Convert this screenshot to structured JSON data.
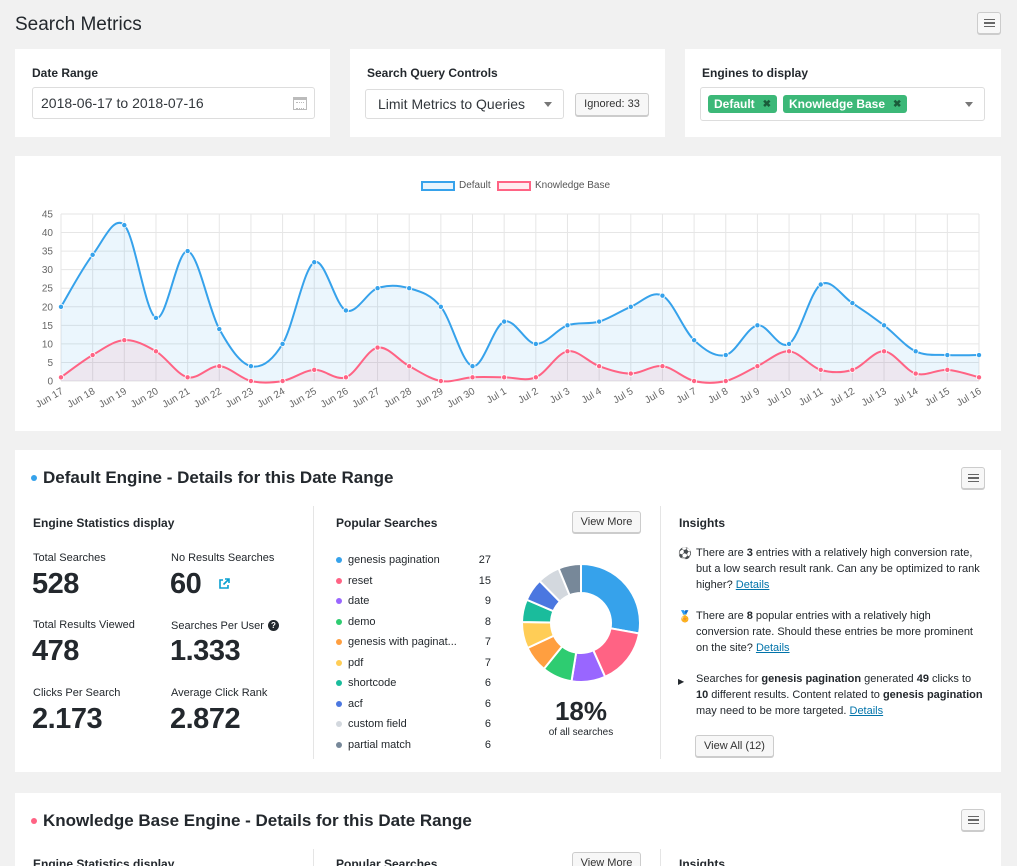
{
  "page": {
    "title": "Search Metrics"
  },
  "controls": {
    "date_range": {
      "label": "Date Range",
      "value": "2018-06-17 to 2018-07-16"
    },
    "query_controls": {
      "label": "Search Query Controls",
      "select_value": "Limit Metrics to Queries",
      "ignored_label": "Ignored: 33"
    },
    "engines": {
      "label": "Engines to display",
      "tags": [
        "Default",
        "Knowledge Base"
      ]
    }
  },
  "colors": {
    "default": "#36a2eb",
    "knowledge_base": "#ff6384",
    "tag_green": "#3cb878"
  },
  "chart_data": {
    "type": "line",
    "categories": [
      "Jun 17",
      "Jun 18",
      "Jun 19",
      "Jun 20",
      "Jun 21",
      "Jun 22",
      "Jun 23",
      "Jun 24",
      "Jun 25",
      "Jun 26",
      "Jun 27",
      "Jun 28",
      "Jun 29",
      "Jun 30",
      "Jul 1",
      "Jul 2",
      "Jul 3",
      "Jul 4",
      "Jul 5",
      "Jul 6",
      "Jul 7",
      "Jul 8",
      "Jul 9",
      "Jul 10",
      "Jul 11",
      "Jul 12",
      "Jul 13",
      "Jul 14",
      "Jul 15",
      "Jul 16"
    ],
    "series": [
      {
        "name": "Default",
        "values": [
          20,
          34,
          42,
          17,
          35,
          14,
          4,
          10,
          32,
          19,
          25,
          25,
          20,
          4,
          16,
          10,
          15,
          16,
          20,
          23,
          11,
          7,
          15,
          10,
          26,
          21,
          15,
          8,
          7,
          7
        ]
      },
      {
        "name": "Knowledge Base",
        "values": [
          1,
          7,
          11,
          8,
          1,
          4,
          0,
          0,
          3,
          1,
          9,
          4,
          0,
          1,
          1,
          1,
          8,
          4,
          2,
          4,
          0,
          0,
          4,
          8,
          3,
          3,
          8,
          2,
          3,
          1
        ]
      }
    ],
    "yticks": [
      "0",
      "5",
      "10",
      "15",
      "20",
      "25",
      "30",
      "35",
      "40",
      "45"
    ],
    "ylim": [
      0,
      45
    ],
    "grid": true,
    "legend": "top-center"
  },
  "default_engine": {
    "title": "Default Engine - Details for this Date Range",
    "stats_heading": "Engine Statistics display",
    "stats": {
      "total_searches": {
        "label": "Total Searches",
        "value": "528"
      },
      "no_results": {
        "label": "No Results Searches",
        "value": "60"
      },
      "total_results_viewed": {
        "label": "Total Results Viewed",
        "value": "478"
      },
      "searches_per_user": {
        "label": "Searches Per User",
        "value": "1.333"
      },
      "clicks_per_search": {
        "label": "Clicks Per Search",
        "value": "2.173"
      },
      "average_click_rank": {
        "label": "Average Click Rank",
        "value": "2.872"
      }
    },
    "popular": {
      "heading": "Popular Searches",
      "view_more": "View More",
      "items": [
        {
          "term": "genesis pagination",
          "count": "27",
          "color": "#36a2eb"
        },
        {
          "term": "reset",
          "count": "15",
          "color": "#ff6384"
        },
        {
          "term": "date",
          "count": "9",
          "color": "#9966ff"
        },
        {
          "term": "demo",
          "count": "8",
          "color": "#2ecc71"
        },
        {
          "term": "genesis with paginat...",
          "count": "7",
          "color": "#ff9f40"
        },
        {
          "term": "pdf",
          "count": "7",
          "color": "#ffcd56"
        },
        {
          "term": "shortcode",
          "count": "6",
          "color": "#1abc9c"
        },
        {
          "term": "acf",
          "count": "6",
          "color": "#4b77e0"
        },
        {
          "term": "custom field",
          "count": "6",
          "color": "#d3d8de"
        },
        {
          "term": "partial match",
          "count": "6",
          "color": "#778899"
        }
      ],
      "percent": "18%",
      "percent_caption": "of all searches"
    },
    "insights": {
      "heading": "Insights",
      "items": [
        {
          "icon": "soccer-ball-icon",
          "pre": "There are ",
          "bold": "3",
          "post": " entries with a relatively high conversion rate, but a low search result rank. Can any be optimized to rank higher?",
          "link": "Details"
        },
        {
          "icon": "award-icon",
          "pre": "There are ",
          "bold": "8",
          "post": " popular entries with a relatively high conversion rate. Should these entries be more prominent on the site?",
          "link": "Details"
        },
        {
          "icon": "triangle-right-icon",
          "t1": "Searches for ",
          "b1": "genesis pagination",
          "t2": " generated ",
          "b2": "49",
          "t3": " clicks to ",
          "b3": "10",
          "t4": " different results. Content related to ",
          "b4": "genesis pagination",
          "t5": " may need to be more targeted.",
          "link": "Details"
        }
      ],
      "view_all": "View All (12)"
    }
  },
  "kb_engine": {
    "title": "Knowledge Base Engine - Details for this Date Range",
    "stats_heading": "Engine Statistics display",
    "popular_heading": "Popular Searches",
    "view_more": "View More",
    "insights_heading": "Insights"
  }
}
